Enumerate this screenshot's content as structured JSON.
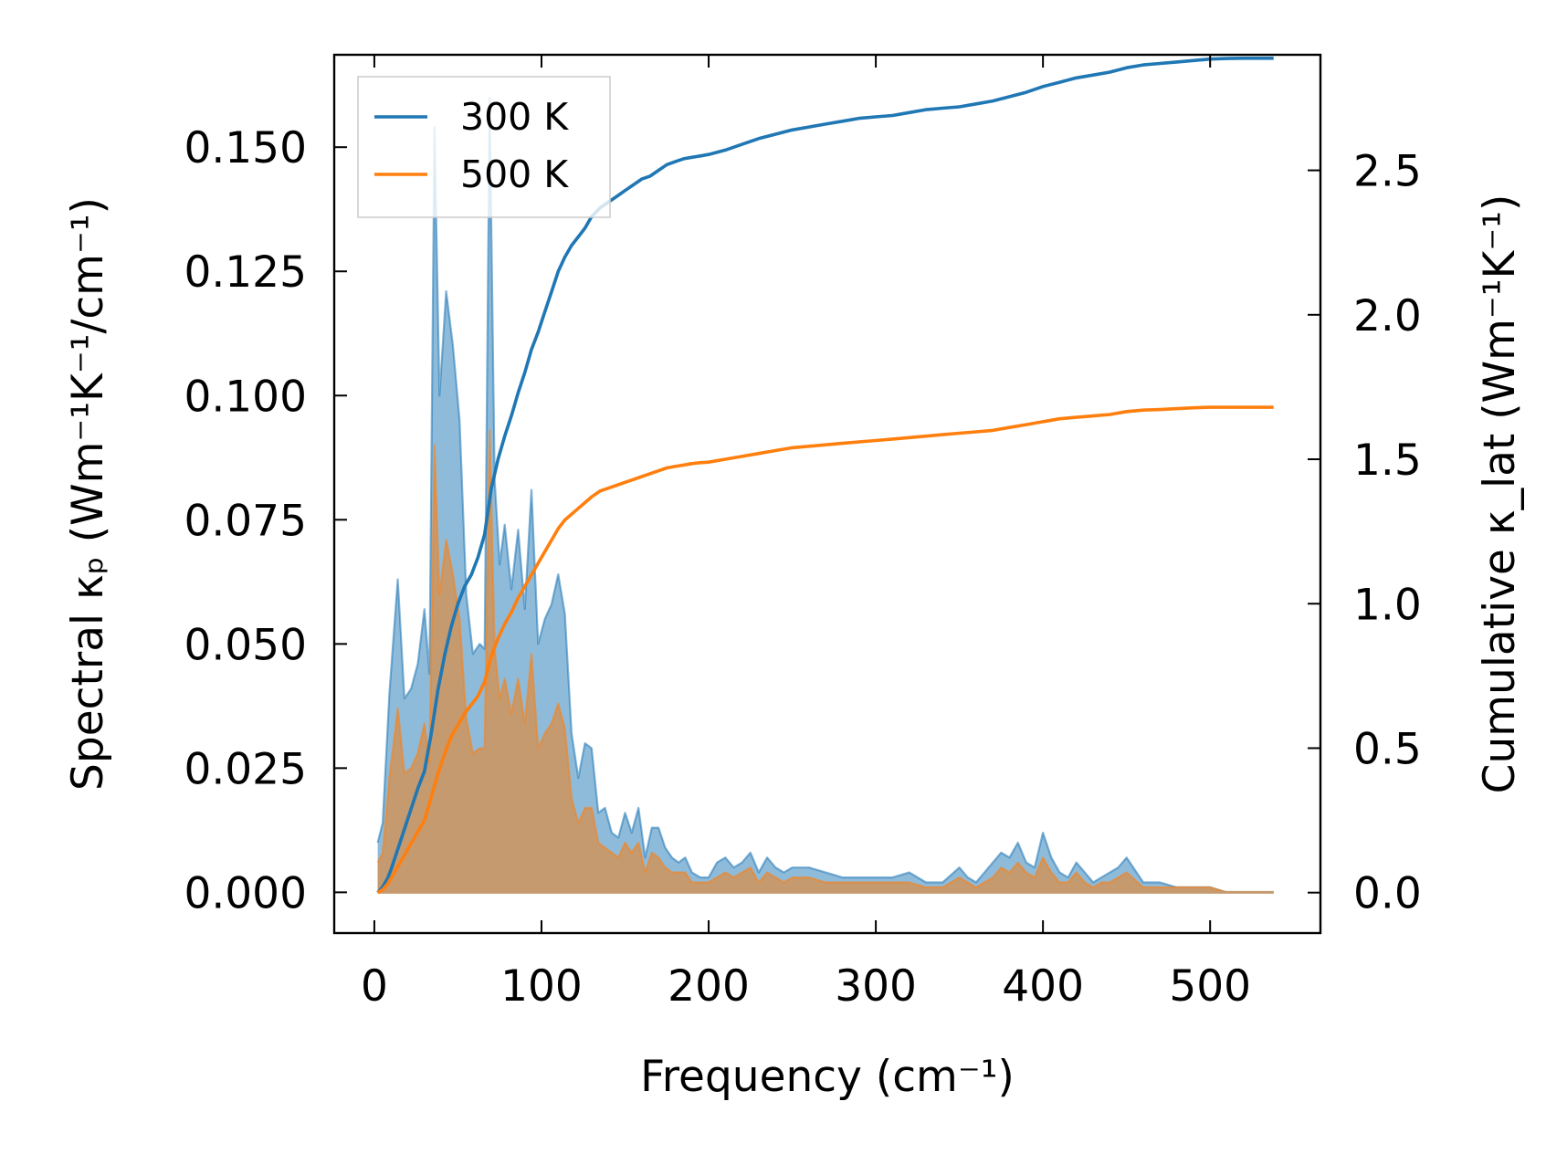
{
  "chart_data": {
    "type": "area",
    "xlabel": "Frequency (cm⁻¹)",
    "ylabel_left": "Spectral κₚ (Wm⁻¹K⁻¹/cm⁻¹)",
    "ylabel_right": "Cumulative κ_lat (Wm⁻¹K⁻¹)",
    "xlim": [
      -24,
      566
    ],
    "ylim_left": [
      -0.0082,
      0.1686
    ],
    "ylim_right": [
      -0.14,
      2.9
    ],
    "xticks": [
      0,
      100,
      200,
      300,
      400,
      500
    ],
    "xtick_labels": [
      "0",
      "100",
      "200",
      "300",
      "400",
      "500"
    ],
    "yticks_left": [
      0.0,
      0.025,
      0.05,
      0.075,
      0.1,
      0.125,
      0.15
    ],
    "ytick_labels_left": [
      "0.000",
      "0.025",
      "0.050",
      "0.075",
      "0.100",
      "0.125",
      "0.150"
    ],
    "yticks_right": [
      0.0,
      0.5,
      1.0,
      1.5,
      2.0,
      2.5
    ],
    "ytick_labels_right": [
      "0.0",
      "0.5",
      "1.0",
      "1.5",
      "2.0",
      "2.5"
    ],
    "legend": {
      "position": "top-left",
      "entries": [
        "300 K",
        "500 K"
      ]
    },
    "colors": {
      "300K": "#1f77b4",
      "500K": "#ff7f0e",
      "fill_300K": "#8fbbda",
      "fill_500K": "#c59a6f"
    },
    "series": [
      {
        "name": "300 K",
        "spectral": {
          "x": [
            2,
            5,
            9,
            14,
            18,
            22,
            26,
            30,
            33,
            36,
            39,
            43,
            47,
            51,
            55,
            59,
            63,
            66,
            69,
            72,
            75,
            78,
            82,
            86,
            90,
            94,
            98,
            102,
            106,
            110,
            114,
            118,
            122,
            126,
            130,
            134,
            138,
            142,
            146,
            150,
            154,
            158,
            162,
            166,
            170,
            174,
            178,
            182,
            186,
            190,
            195,
            200,
            205,
            210,
            215,
            220,
            225,
            230,
            235,
            240,
            245,
            250,
            260,
            270,
            280,
            290,
            300,
            310,
            320,
            330,
            340,
            350,
            355,
            360,
            365,
            370,
            375,
            380,
            385,
            390,
            395,
            400,
            405,
            410,
            415,
            420,
            425,
            430,
            435,
            440,
            445,
            450,
            460,
            470,
            480,
            490,
            500,
            510,
            520,
            530,
            538
          ],
          "y": [
            0.01,
            0.014,
            0.04,
            0.063,
            0.039,
            0.041,
            0.046,
            0.057,
            0.044,
            0.154,
            0.1,
            0.121,
            0.11,
            0.095,
            0.06,
            0.048,
            0.05,
            0.049,
            0.16,
            0.083,
            0.066,
            0.074,
            0.061,
            0.073,
            0.057,
            0.081,
            0.05,
            0.055,
            0.058,
            0.064,
            0.056,
            0.032,
            0.023,
            0.03,
            0.029,
            0.016,
            0.017,
            0.012,
            0.011,
            0.016,
            0.012,
            0.017,
            0.007,
            0.013,
            0.013,
            0.009,
            0.007,
            0.006,
            0.007,
            0.004,
            0.003,
            0.003,
            0.006,
            0.007,
            0.005,
            0.006,
            0.008,
            0.004,
            0.007,
            0.005,
            0.004,
            0.005,
            0.005,
            0.004,
            0.003,
            0.003,
            0.003,
            0.003,
            0.004,
            0.002,
            0.002,
            0.005,
            0.003,
            0.002,
            0.004,
            0.006,
            0.008,
            0.007,
            0.01,
            0.006,
            0.005,
            0.012,
            0.007,
            0.004,
            0.003,
            0.006,
            0.004,
            0.002,
            0.003,
            0.004,
            0.005,
            0.007,
            0.002,
            0.002,
            0.001,
            0.001,
            0.001,
            0.0,
            0.0,
            0.0,
            0.0
          ]
        },
        "cumulative": {
          "x": [
            2,
            5,
            8,
            10,
            14,
            18,
            22,
            26,
            30,
            34,
            38,
            42,
            46,
            50,
            54,
            58,
            62,
            66,
            70,
            74,
            78,
            82,
            86,
            90,
            94,
            98,
            102,
            106,
            110,
            114,
            118,
            122,
            126,
            130,
            135,
            140,
            145,
            150,
            155,
            160,
            165,
            170,
            175,
            180,
            185,
            190,
            195,
            200,
            210,
            220,
            230,
            240,
            250,
            260,
            270,
            280,
            290,
            300,
            310,
            320,
            330,
            340,
            350,
            360,
            370,
            380,
            390,
            400,
            410,
            420,
            430,
            440,
            450,
            460,
            470,
            480,
            490,
            500,
            510,
            520,
            530,
            538
          ],
          "y": [
            0.0,
            0.02,
            0.05,
            0.08,
            0.15,
            0.22,
            0.29,
            0.36,
            0.42,
            0.55,
            0.7,
            0.82,
            0.92,
            1.0,
            1.06,
            1.1,
            1.16,
            1.24,
            1.4,
            1.5,
            1.58,
            1.65,
            1.73,
            1.8,
            1.88,
            1.94,
            2.01,
            2.08,
            2.15,
            2.2,
            2.24,
            2.27,
            2.3,
            2.34,
            2.37,
            2.39,
            2.41,
            2.43,
            2.45,
            2.47,
            2.48,
            2.5,
            2.52,
            2.53,
            2.54,
            2.545,
            2.55,
            2.555,
            2.57,
            2.59,
            2.61,
            2.625,
            2.64,
            2.65,
            2.66,
            2.67,
            2.68,
            2.685,
            2.69,
            2.7,
            2.71,
            2.715,
            2.72,
            2.73,
            2.74,
            2.755,
            2.77,
            2.79,
            2.805,
            2.82,
            2.83,
            2.84,
            2.855,
            2.865,
            2.87,
            2.875,
            2.88,
            2.885,
            2.887,
            2.888,
            2.888,
            2.888
          ]
        }
      },
      {
        "name": "500 K",
        "spectral": {
          "x": [
            2,
            5,
            9,
            14,
            18,
            22,
            26,
            30,
            33,
            36,
            39,
            43,
            47,
            51,
            55,
            59,
            63,
            66,
            69,
            72,
            75,
            78,
            82,
            86,
            90,
            94,
            98,
            102,
            106,
            110,
            114,
            118,
            122,
            126,
            130,
            134,
            138,
            142,
            146,
            150,
            154,
            158,
            162,
            166,
            170,
            174,
            178,
            182,
            186,
            190,
            195,
            200,
            205,
            210,
            215,
            220,
            225,
            230,
            235,
            240,
            245,
            250,
            260,
            270,
            280,
            290,
            300,
            310,
            320,
            330,
            340,
            350,
            355,
            360,
            365,
            370,
            375,
            380,
            385,
            390,
            395,
            400,
            405,
            410,
            415,
            420,
            425,
            430,
            435,
            440,
            445,
            450,
            460,
            470,
            480,
            490,
            500,
            510,
            520,
            530,
            538
          ],
          "y": [
            0.006,
            0.008,
            0.023,
            0.037,
            0.024,
            0.025,
            0.028,
            0.034,
            0.026,
            0.09,
            0.06,
            0.071,
            0.064,
            0.055,
            0.035,
            0.028,
            0.029,
            0.029,
            0.093,
            0.049,
            0.039,
            0.043,
            0.036,
            0.043,
            0.034,
            0.048,
            0.029,
            0.032,
            0.034,
            0.038,
            0.033,
            0.019,
            0.014,
            0.017,
            0.017,
            0.01,
            0.009,
            0.008,
            0.007,
            0.01,
            0.008,
            0.01,
            0.004,
            0.008,
            0.007,
            0.005,
            0.004,
            0.004,
            0.004,
            0.002,
            0.002,
            0.002,
            0.003,
            0.004,
            0.003,
            0.004,
            0.005,
            0.002,
            0.004,
            0.003,
            0.002,
            0.003,
            0.003,
            0.002,
            0.002,
            0.002,
            0.002,
            0.002,
            0.002,
            0.001,
            0.001,
            0.003,
            0.002,
            0.001,
            0.002,
            0.003,
            0.005,
            0.004,
            0.006,
            0.004,
            0.003,
            0.007,
            0.004,
            0.002,
            0.002,
            0.004,
            0.002,
            0.001,
            0.002,
            0.002,
            0.003,
            0.004,
            0.001,
            0.001,
            0.001,
            0.001,
            0.001,
            0.0,
            0.0,
            0.0,
            0.0
          ]
        },
        "cumulative": {
          "x": [
            2,
            5,
            8,
            10,
            14,
            18,
            22,
            26,
            30,
            34,
            38,
            42,
            46,
            50,
            54,
            58,
            62,
            66,
            70,
            74,
            78,
            82,
            86,
            90,
            94,
            98,
            102,
            106,
            110,
            114,
            118,
            122,
            126,
            130,
            135,
            140,
            145,
            150,
            155,
            160,
            165,
            170,
            175,
            180,
            185,
            190,
            195,
            200,
            210,
            220,
            230,
            240,
            250,
            260,
            270,
            280,
            290,
            300,
            310,
            320,
            330,
            340,
            350,
            360,
            370,
            380,
            390,
            400,
            410,
            420,
            430,
            440,
            450,
            460,
            470,
            480,
            490,
            500,
            510,
            520,
            530,
            538
          ],
          "y": [
            0.0,
            0.01,
            0.03,
            0.05,
            0.09,
            0.13,
            0.17,
            0.21,
            0.25,
            0.33,
            0.41,
            0.48,
            0.54,
            0.58,
            0.62,
            0.65,
            0.68,
            0.73,
            0.82,
            0.88,
            0.93,
            0.97,
            1.02,
            1.06,
            1.1,
            1.14,
            1.18,
            1.22,
            1.26,
            1.29,
            1.31,
            1.33,
            1.35,
            1.37,
            1.39,
            1.4,
            1.41,
            1.42,
            1.43,
            1.44,
            1.45,
            1.46,
            1.47,
            1.475,
            1.48,
            1.485,
            1.488,
            1.49,
            1.5,
            1.51,
            1.52,
            1.53,
            1.54,
            1.545,
            1.55,
            1.555,
            1.56,
            1.565,
            1.57,
            1.575,
            1.58,
            1.585,
            1.59,
            1.595,
            1.6,
            1.61,
            1.62,
            1.63,
            1.64,
            1.645,
            1.65,
            1.655,
            1.665,
            1.67,
            1.672,
            1.675,
            1.678,
            1.68,
            1.68,
            1.68,
            1.68,
            1.68
          ]
        }
      }
    ]
  }
}
